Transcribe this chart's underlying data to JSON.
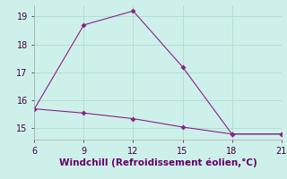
{
  "line1_x": [
    6,
    9,
    12,
    15,
    18,
    21
  ],
  "line1_y": [
    15.7,
    18.7,
    19.2,
    17.2,
    14.8,
    14.8
  ],
  "line2_x": [
    6,
    9,
    12,
    15,
    18,
    21
  ],
  "line2_y": [
    15.7,
    15.55,
    15.35,
    15.05,
    14.8,
    14.8
  ],
  "line_color": "#882288",
  "marker": "D",
  "marker_size": 3,
  "xlabel": "Windchill (Refroidissement éolien,°C)",
  "xlim": [
    6,
    21
  ],
  "ylim": [
    14.6,
    19.4
  ],
  "xticks": [
    6,
    9,
    12,
    15,
    18,
    21
  ],
  "yticks": [
    15,
    16,
    17,
    18,
    19
  ],
  "background_color": "#cef0ea",
  "grid_color": "#aaddcc",
  "xlabel_color": "#660066",
  "xlabel_fontsize": 7.5,
  "tick_fontsize": 7,
  "tick_color": "#440044"
}
